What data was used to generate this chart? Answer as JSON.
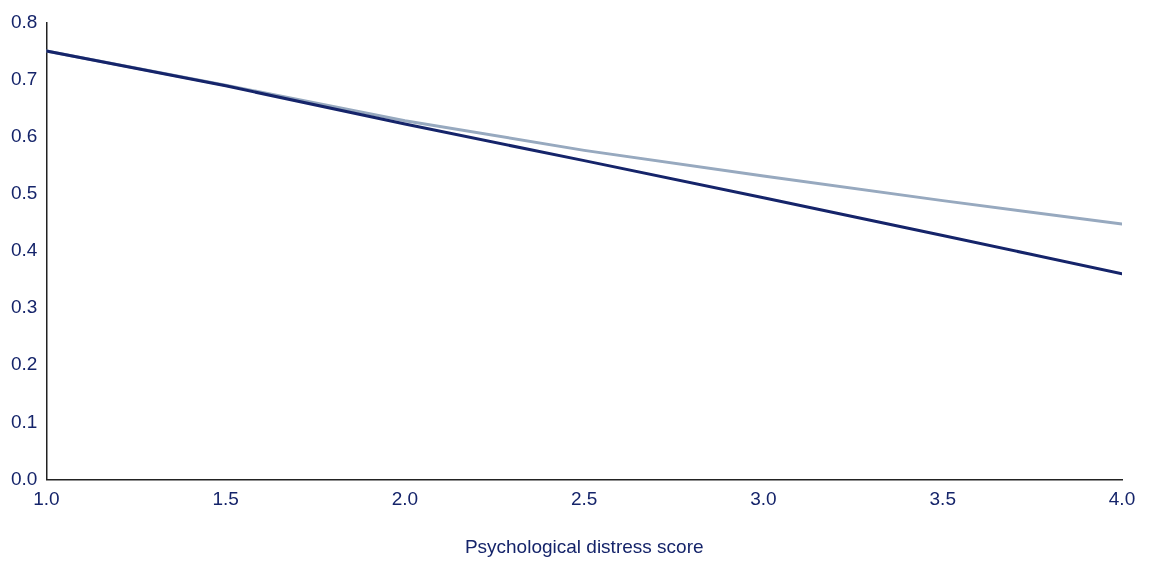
{
  "chart_data": {
    "type": "line",
    "xlabel": "Psychological distress score",
    "x": [
      1.0,
      1.5,
      2.0,
      2.5,
      3.0,
      3.5,
      4.0
    ],
    "series": [
      {
        "color": "#15246a",
        "values": [
          0.75,
          0.689,
          0.622,
          0.558,
          0.493,
          0.427,
          0.36
        ]
      },
      {
        "color": "#97a9bf",
        "values": [
          0.75,
          0.69,
          0.628,
          0.576,
          0.531,
          0.488,
          0.447
        ]
      }
    ],
    "xlim": [
      1.0,
      4.0
    ],
    "xticks": [
      {
        "value": 1.0,
        "label": "1.0"
      },
      {
        "value": 1.5,
        "label": "1.5"
      },
      {
        "value": 2.0,
        "label": "2.0"
      },
      {
        "value": 2.5,
        "label": "2.5"
      },
      {
        "value": 3.0,
        "label": "3.0"
      },
      {
        "value": 3.5,
        "label": "3.5"
      },
      {
        "value": 4.0,
        "label": "4.0"
      }
    ],
    "ylim": [
      0,
      0.8
    ],
    "yticks": [
      {
        "value": 0,
        "label": "0.0"
      },
      {
        "value": 0.1,
        "label": "0.1"
      },
      {
        "value": 0.2,
        "label": "0.2"
      },
      {
        "value": 0.3,
        "label": "0.3"
      },
      {
        "value": 0.4,
        "label": "0.4"
      },
      {
        "value": 0.5,
        "label": "0.5"
      },
      {
        "value": 0.6,
        "label": "0.6"
      },
      {
        "value": 0.7,
        "label": "0.7"
      },
      {
        "value": 0.8,
        "label": "0.8"
      }
    ],
    "grid": false,
    "legend": false,
    "marker": "none",
    "line_style": "solid"
  }
}
